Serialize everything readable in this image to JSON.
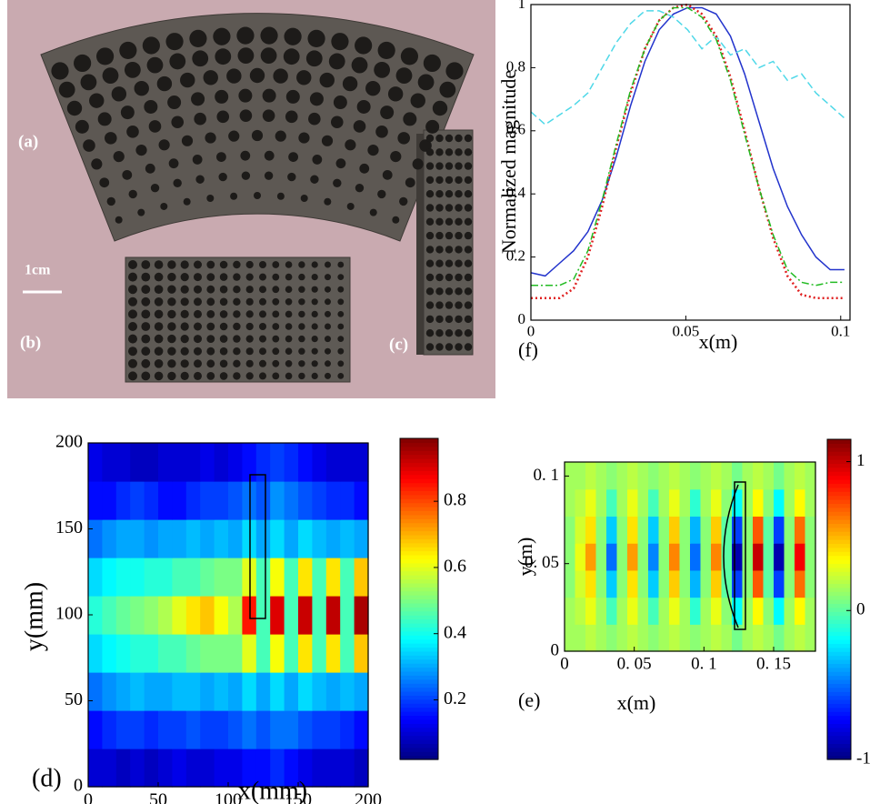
{
  "photo": {
    "labels": [
      "(a)",
      "(b)",
      "(c)"
    ],
    "scale_bar": "1cm"
  },
  "chart_data": [
    {
      "type": "line",
      "panel": "(f)",
      "xlabel": "x(m)",
      "ylabel": "Normalized magnitude",
      "x": [
        0,
        0.0046,
        0.0092,
        0.0138,
        0.0184,
        0.023,
        0.0276,
        0.0322,
        0.0368,
        0.0414,
        0.046,
        0.0506,
        0.0552,
        0.0598,
        0.0644,
        0.069,
        0.0736,
        0.0782,
        0.0828,
        0.0874,
        0.092,
        0.0966,
        0.1012
      ],
      "xlim": [
        0,
        0.103
      ],
      "ylim": [
        0,
        1
      ],
      "xticks": [
        0,
        0.05,
        0.1
      ],
      "yticks": [
        0,
        0.2,
        0.4,
        0.6,
        0.8,
        1
      ],
      "series": [
        {
          "color": "#2233cc",
          "style": "solid",
          "values": [
            0.15,
            0.14,
            0.18,
            0.22,
            0.28,
            0.38,
            0.52,
            0.68,
            0.82,
            0.92,
            0.97,
            0.99,
            0.99,
            0.97,
            0.9,
            0.78,
            0.63,
            0.48,
            0.36,
            0.27,
            0.2,
            0.16,
            0.16
          ]
        },
        {
          "color": "#4fd8e8",
          "style": "dashed",
          "values": [
            0.66,
            0.62,
            0.65,
            0.68,
            0.72,
            0.8,
            0.88,
            0.94,
            0.98,
            0.98,
            0.96,
            0.92,
            0.86,
            0.9,
            0.84,
            0.86,
            0.8,
            0.82,
            0.76,
            0.78,
            0.72,
            0.68,
            0.64
          ]
        },
        {
          "color": "#e02020",
          "style": "dotted",
          "values": [
            0.07,
            0.07,
            0.07,
            0.1,
            0.2,
            0.36,
            0.55,
            0.72,
            0.86,
            0.95,
            0.99,
            1,
            0.97,
            0.9,
            0.77,
            0.6,
            0.42,
            0.26,
            0.14,
            0.08,
            0.07,
            0.07,
            0.07
          ]
        },
        {
          "color": "#22bb22",
          "style": "dashdot",
          "values": [
            0.11,
            0.11,
            0.11,
            0.13,
            0.22,
            0.38,
            0.56,
            0.73,
            0.86,
            0.95,
            0.99,
            0.99,
            0.96,
            0.89,
            0.76,
            0.59,
            0.42,
            0.27,
            0.16,
            0.12,
            0.11,
            0.12,
            0.12
          ]
        }
      ]
    },
    {
      "type": "heatmap",
      "panel": "(d)",
      "xlabel": "x(mm)",
      "ylabel": "y(mm)",
      "xlim": [
        0,
        200
      ],
      "ylim": [
        0,
        200
      ],
      "xticks": [
        0,
        50,
        100,
        150,
        200
      ],
      "yticks": [
        0,
        50,
        100,
        150,
        200
      ],
      "zlim": [
        0.02,
        0.99
      ],
      "zticks": [
        0.2,
        0.4,
        0.6,
        0.8
      ],
      "colormap": "jet",
      "z": [
        [
          0.1,
          0.1,
          0.08,
          0.1,
          0.08,
          0.1,
          0.12,
          0.1,
          0.1,
          0.12,
          0.12,
          0.15,
          0.15,
          0.18,
          0.15,
          0.12,
          0.1,
          0.1,
          0.1,
          0.08
        ],
        [
          0.15,
          0.18,
          0.2,
          0.2,
          0.18,
          0.2,
          0.2,
          0.22,
          0.2,
          0.2,
          0.22,
          0.25,
          0.22,
          0.25,
          0.25,
          0.22,
          0.2,
          0.2,
          0.18,
          0.15
        ],
        [
          0.25,
          0.28,
          0.3,
          0.32,
          0.3,
          0.3,
          0.32,
          0.32,
          0.3,
          0.32,
          0.3,
          0.35,
          0.3,
          0.35,
          0.3,
          0.35,
          0.32,
          0.3,
          0.32,
          0.3
        ],
        [
          0.35,
          0.38,
          0.4,
          0.42,
          0.42,
          0.45,
          0.45,
          0.48,
          0.5,
          0.5,
          0.5,
          0.6,
          0.45,
          0.62,
          0.45,
          0.65,
          0.45,
          0.65,
          0.45,
          0.68
        ],
        [
          0.42,
          0.45,
          0.48,
          0.5,
          0.52,
          0.55,
          0.6,
          0.65,
          0.68,
          0.62,
          0.55,
          0.85,
          0.45,
          0.9,
          0.45,
          0.92,
          0.45,
          0.93,
          0.45,
          0.95
        ],
        [
          0.35,
          0.38,
          0.4,
          0.4,
          0.42,
          0.42,
          0.45,
          0.45,
          0.48,
          0.5,
          0.5,
          0.6,
          0.45,
          0.62,
          0.45,
          0.65,
          0.45,
          0.65,
          0.45,
          0.68
        ],
        [
          0.25,
          0.28,
          0.3,
          0.3,
          0.28,
          0.3,
          0.3,
          0.32,
          0.3,
          0.32,
          0.3,
          0.35,
          0.3,
          0.35,
          0.3,
          0.35,
          0.32,
          0.3,
          0.32,
          0.3
        ],
        [
          0.15,
          0.15,
          0.18,
          0.2,
          0.18,
          0.15,
          0.15,
          0.18,
          0.2,
          0.2,
          0.22,
          0.25,
          0.22,
          0.28,
          0.25,
          0.22,
          0.2,
          0.18,
          0.18,
          0.15
        ],
        [
          0.12,
          0.1,
          0.1,
          0.08,
          0.08,
          0.1,
          0.1,
          0.1,
          0.12,
          0.1,
          0.12,
          0.15,
          0.18,
          0.2,
          0.18,
          0.15,
          0.12,
          0.1,
          0.1,
          0.1
        ]
      ]
    },
    {
      "type": "heatmap",
      "panel": "(e)",
      "xlabel": "x(m)",
      "ylabel": "y(m)",
      "xlim": [
        0,
        0.18
      ],
      "ylim": [
        0,
        0.108
      ],
      "xticks": [
        0,
        {
          "value": 0.05,
          "label": "0. 05"
        },
        {
          "value": 0.1,
          "label": "0. 1"
        },
        {
          "value": 0.15,
          "label": "0. 15"
        }
      ],
      "yticks": [
        0,
        {
          "value": 0.05,
          "label": "0. 05"
        },
        {
          "value": 0.1,
          "label": "0. 1"
        }
      ],
      "zlim": [
        -1,
        1.15
      ],
      "zticks": [
        -1,
        0,
        1
      ],
      "colormap": "jet",
      "z": [
        [
          0.15,
          0.15,
          0.2,
          0.15,
          0.1,
          0.15,
          0.2,
          0.15,
          0.1,
          0.15,
          0.2,
          0.15,
          0.1,
          0.15,
          0.2,
          0.15,
          0.05,
          0.15,
          0.2,
          0.15,
          0.05,
          0.15,
          0.2,
          0.15
        ],
        [
          0.15,
          0.2,
          0.3,
          0.15,
          -0.05,
          0.15,
          0.3,
          0.15,
          -0.05,
          0.15,
          0.3,
          0.15,
          -0.1,
          0.15,
          0.3,
          0.1,
          -0.2,
          0.15,
          0.35,
          0.1,
          -0.2,
          0.15,
          0.35,
          0.15
        ],
        [
          0.1,
          0.25,
          0.4,
          0.1,
          -0.3,
          0.1,
          0.4,
          0.1,
          -0.3,
          0.1,
          0.45,
          0.1,
          -0.35,
          0.1,
          0.45,
          0,
          -0.6,
          0.1,
          0.7,
          0,
          -0.6,
          0.1,
          0.65,
          0.1
        ],
        [
          0.1,
          0.3,
          0.55,
          0.1,
          -0.5,
          0.1,
          0.55,
          0.1,
          -0.45,
          0.1,
          0.6,
          0.1,
          -0.5,
          0.1,
          0.6,
          0,
          -0.9,
          0.1,
          1,
          0,
          -0.9,
          0.1,
          0.9,
          0.1
        ],
        [
          0.1,
          0.25,
          0.4,
          0.1,
          -0.3,
          0.1,
          0.4,
          0.1,
          -0.3,
          0.1,
          0.45,
          0.1,
          -0.35,
          0.1,
          0.45,
          0,
          -0.6,
          0.1,
          0.7,
          0,
          -0.6,
          0.1,
          0.65,
          0.1
        ],
        [
          0.15,
          0.2,
          0.3,
          0.15,
          -0.05,
          0.15,
          0.3,
          0.15,
          -0.05,
          0.15,
          0.3,
          0.15,
          -0.1,
          0.15,
          0.3,
          0.1,
          -0.2,
          0.15,
          0.35,
          0.1,
          -0.2,
          0.15,
          0.35,
          0.15
        ],
        [
          0.15,
          0.15,
          0.2,
          0.15,
          0.1,
          0.15,
          0.2,
          0.15,
          0.1,
          0.15,
          0.2,
          0.15,
          0.1,
          0.15,
          0.2,
          0.15,
          0.05,
          0.15,
          0.2,
          0.15,
          0.05,
          0.15,
          0.2,
          0.15
        ]
      ]
    }
  ]
}
